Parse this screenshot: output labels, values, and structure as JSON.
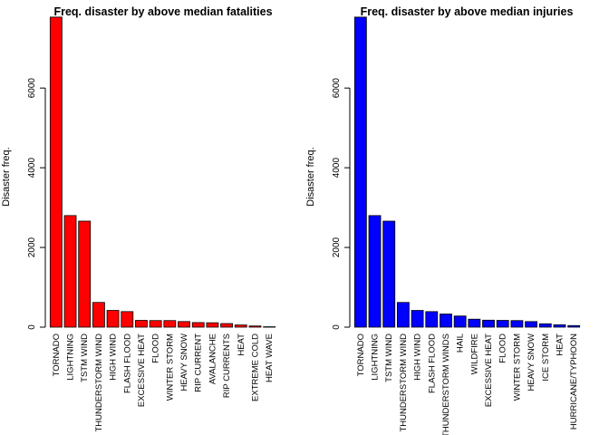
{
  "chart_data": [
    {
      "type": "bar",
      "title": "Freq. disaster by above median fatalities",
      "xlabel": "",
      "ylabel": "Disaster freq.",
      "ylim": [
        0,
        7800
      ],
      "yticks": [
        0,
        2000,
        4000,
        6000
      ],
      "grid": false,
      "legend": "none",
      "bar_color": "#ff0000",
      "categories": [
        "TORNADO",
        "LIGHTNING",
        "TSTM WIND",
        "THUNDERSTORM WIND",
        "HIGH WIND",
        "FLASH FLOOD",
        "EXCESSIVE HEAT",
        "FLOOD",
        "WINTER STORM",
        "HEAVY SNOW",
        "RIP CURRENT",
        "AVALANCHE",
        "RIP CURRENTS",
        "HEAT",
        "EXTREME COLD",
        "HEAT WAVE"
      ],
      "values": [
        7780,
        2800,
        2660,
        620,
        420,
        390,
        170,
        165,
        165,
        140,
        115,
        110,
        90,
        55,
        30,
        10
      ]
    },
    {
      "type": "bar",
      "title": "Freq. disaster by above median injuries",
      "xlabel": "",
      "ylabel": "Disaster freq.",
      "ylim": [
        0,
        7800
      ],
      "yticks": [
        0,
        2000,
        4000,
        6000
      ],
      "grid": false,
      "legend": "none",
      "bar_color": "#0000ff",
      "categories": [
        "TORNADO",
        "LIGHTNING",
        "TSTM WIND",
        "THUNDERSTORM WIND",
        "HIGH WIND",
        "FLASH FLOOD",
        "THUNDERSTORM WINDS",
        "HAIL",
        "WILDFIRE",
        "EXCESSIVE HEAT",
        "FLOOD",
        "WINTER STORM",
        "HEAVY SNOW",
        "ICE STORM",
        "HEAT",
        "HURRICANE/TYPHOON"
      ],
      "values": [
        7780,
        2800,
        2660,
        620,
        420,
        390,
        330,
        280,
        200,
        175,
        170,
        165,
        140,
        85,
        60,
        40
      ]
    }
  ]
}
